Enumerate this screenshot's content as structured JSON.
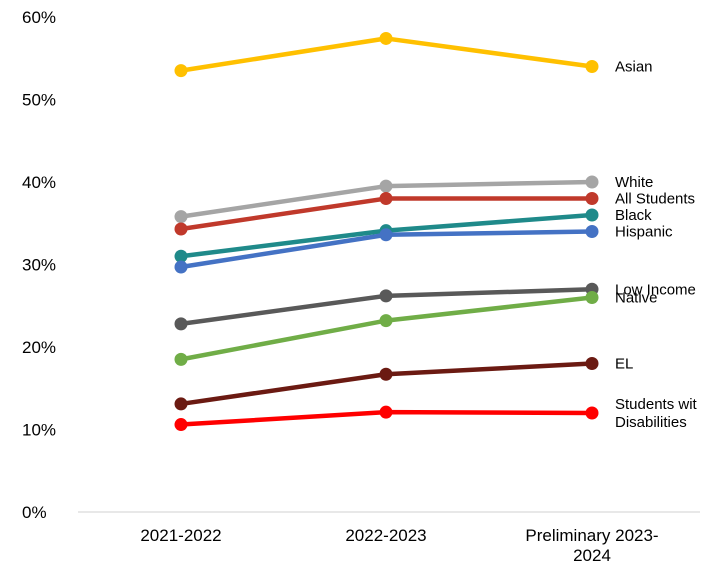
{
  "chart_data": {
    "type": "line",
    "title": "",
    "xlabel": "",
    "ylabel": "",
    "x": [
      "2021-2022",
      "2022-2023",
      "Preliminary 2023-2024"
    ],
    "x_tick_lines": [
      [
        "2021-2022"
      ],
      [
        "2022-2023"
      ],
      [
        "Preliminary 2023-",
        "2024"
      ]
    ],
    "y_ticks": [
      "0%",
      "10%",
      "20%",
      "30%",
      "40%",
      "50%",
      "60%"
    ],
    "y_tick_values": [
      0,
      10,
      20,
      30,
      40,
      50,
      60
    ],
    "ylim": [
      0,
      60
    ],
    "grid": false,
    "legend": "direct labels at right end of lines",
    "series": [
      {
        "name": "Asian",
        "label_lines": [
          "Asian"
        ],
        "color": "#ffc000",
        "values": [
          53.5,
          57.4,
          54.0
        ]
      },
      {
        "name": "White",
        "label_lines": [
          "White"
        ],
        "color": "#a5a5a5",
        "values": [
          35.8,
          39.5,
          40.0
        ]
      },
      {
        "name": "All Students",
        "label_lines": [
          "All Students"
        ],
        "color": "#c0392b",
        "values": [
          34.3,
          38.0,
          38.0
        ]
      },
      {
        "name": "Black",
        "label_lines": [
          "Black"
        ],
        "color": "#1f8a8a",
        "values": [
          31.0,
          34.1,
          36.0
        ]
      },
      {
        "name": "Hispanic",
        "label_lines": [
          "Hispanic"
        ],
        "color": "#4472c4",
        "values": [
          29.7,
          33.6,
          34.0
        ]
      },
      {
        "name": "Low Income",
        "label_lines": [
          "Low Income"
        ],
        "color": "#595959",
        "values": [
          22.8,
          26.2,
          27.0
        ]
      },
      {
        "name": "Native",
        "label_lines": [
          "Native"
        ],
        "color": "#70ad47",
        "values": [
          18.5,
          23.2,
          26.0
        ]
      },
      {
        "name": "EL",
        "label_lines": [
          "EL"
        ],
        "color": "#6b1a12",
        "values": [
          13.1,
          16.7,
          18.0
        ]
      },
      {
        "name": "Students with Disabilities",
        "label_lines": [
          "Students wit",
          "Disabilities"
        ],
        "color": "#ff0000",
        "values": [
          10.6,
          12.1,
          12.0
        ]
      }
    ]
  }
}
